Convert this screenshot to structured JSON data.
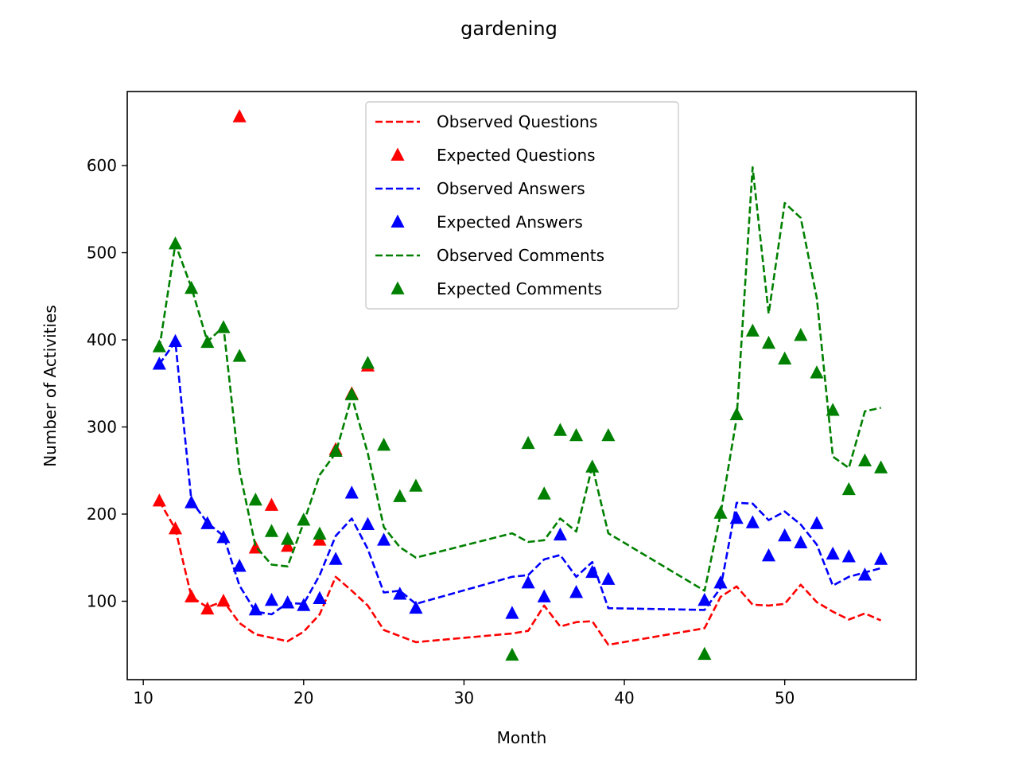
{
  "chart_data": {
    "type": "line",
    "title": "gardening",
    "xlabel": "Month",
    "ylabel": "Number of Activities",
    "xlim": [
      9,
      58.2
    ],
    "ylim": [
      10,
      685
    ],
    "xticks": [
      10,
      20,
      30,
      40,
      50
    ],
    "yticks": [
      100,
      200,
      300,
      400,
      500,
      600
    ],
    "grid": false,
    "legend_position": "top-center",
    "series": [
      {
        "name": "Observed Questions",
        "style": "dashed-line",
        "color": "#ff0000",
        "points": [
          [
            11,
            215
          ],
          [
            12,
            183
          ],
          [
            13,
            105
          ],
          [
            14,
            93
          ],
          [
            15,
            100
          ],
          [
            16,
            75
          ],
          [
            17,
            62
          ],
          [
            18,
            58
          ],
          [
            19,
            54
          ],
          [
            20,
            65
          ],
          [
            21,
            85
          ],
          [
            22,
            128
          ],
          [
            23,
            112
          ],
          [
            24,
            95
          ],
          [
            25,
            67
          ],
          [
            26,
            60
          ],
          [
            27,
            53
          ],
          [
            33,
            63
          ],
          [
            34,
            66
          ],
          [
            35,
            95
          ],
          [
            36,
            71
          ],
          [
            37,
            76
          ],
          [
            38,
            77
          ],
          [
            39,
            50
          ],
          [
            45,
            69
          ],
          [
            46,
            105
          ],
          [
            47,
            117
          ],
          [
            48,
            96
          ],
          [
            49,
            95
          ],
          [
            50,
            97
          ],
          [
            51,
            119
          ],
          [
            52,
            99
          ],
          [
            53,
            88
          ],
          [
            54,
            79
          ],
          [
            55,
            86
          ],
          [
            56,
            78
          ]
        ]
      },
      {
        "name": "Expected Questions",
        "style": "triangle-marker",
        "color": "#ff0000",
        "points": [
          [
            11,
            215
          ],
          [
            12,
            183
          ],
          [
            13,
            105
          ],
          [
            14,
            91
          ],
          [
            15,
            100
          ],
          [
            16,
            656
          ],
          [
            17,
            161
          ],
          [
            18,
            210
          ],
          [
            19,
            163
          ],
          [
            21,
            170
          ],
          [
            22,
            274
          ],
          [
            23,
            338
          ],
          [
            24,
            370
          ]
        ]
      },
      {
        "name": "Observed Answers",
        "style": "dashed-line",
        "color": "#0000ff",
        "points": [
          [
            11,
            372
          ],
          [
            12,
            398
          ],
          [
            13,
            215
          ],
          [
            14,
            190
          ],
          [
            15,
            175
          ],
          [
            16,
            118
          ],
          [
            17,
            88
          ],
          [
            18,
            85
          ],
          [
            19,
            98
          ],
          [
            20,
            97
          ],
          [
            21,
            130
          ],
          [
            22,
            175
          ],
          [
            23,
            195
          ],
          [
            24,
            160
          ],
          [
            25,
            110
          ],
          [
            26,
            112
          ],
          [
            27,
            97
          ],
          [
            33,
            128
          ],
          [
            34,
            130
          ],
          [
            35,
            148
          ],
          [
            36,
            153
          ],
          [
            37,
            128
          ],
          [
            38,
            145
          ],
          [
            39,
            92
          ],
          [
            45,
            90
          ],
          [
            46,
            115
          ],
          [
            47,
            213
          ],
          [
            48,
            212
          ],
          [
            49,
            193
          ],
          [
            50,
            203
          ],
          [
            51,
            188
          ],
          [
            52,
            165
          ],
          [
            53,
            118
          ],
          [
            54,
            128
          ],
          [
            55,
            133
          ],
          [
            56,
            138
          ]
        ]
      },
      {
        "name": "Expected Answers",
        "style": "triangle-marker",
        "color": "#0000ff",
        "points": [
          [
            11,
            372
          ],
          [
            12,
            398
          ],
          [
            13,
            213
          ],
          [
            14,
            189
          ],
          [
            15,
            173
          ],
          [
            16,
            140
          ],
          [
            17,
            90
          ],
          [
            18,
            101
          ],
          [
            19,
            98
          ],
          [
            20,
            95
          ],
          [
            21,
            103
          ],
          [
            22,
            148
          ],
          [
            23,
            224
          ],
          [
            24,
            188
          ],
          [
            25,
            170
          ],
          [
            26,
            108
          ],
          [
            27,
            92
          ],
          [
            33,
            86
          ],
          [
            34,
            121
          ],
          [
            35,
            105
          ],
          [
            36,
            176
          ],
          [
            37,
            110
          ],
          [
            38,
            133
          ],
          [
            39,
            125
          ],
          [
            45,
            101
          ],
          [
            46,
            121
          ],
          [
            47,
            195
          ],
          [
            48,
            190
          ],
          [
            49,
            152
          ],
          [
            50,
            175
          ],
          [
            51,
            167
          ],
          [
            52,
            189
          ],
          [
            53,
            154
          ],
          [
            54,
            151
          ],
          [
            55,
            130
          ],
          [
            56,
            148
          ]
        ]
      },
      {
        "name": "Observed Comments",
        "style": "dashed-line",
        "color": "#008000",
        "points": [
          [
            11,
            390
          ],
          [
            12,
            510
          ],
          [
            13,
            460
          ],
          [
            14,
            398
          ],
          [
            15,
            415
          ],
          [
            16,
            250
          ],
          [
            17,
            163
          ],
          [
            18,
            142
          ],
          [
            19,
            140
          ],
          [
            20,
            190
          ],
          [
            21,
            245
          ],
          [
            22,
            270
          ],
          [
            23,
            335
          ],
          [
            24,
            270
          ],
          [
            25,
            185
          ],
          [
            26,
            162
          ],
          [
            27,
            150
          ],
          [
            33,
            178
          ],
          [
            34,
            168
          ],
          [
            35,
            170
          ],
          [
            36,
            195
          ],
          [
            37,
            180
          ],
          [
            38,
            255
          ],
          [
            39,
            178
          ],
          [
            45,
            112
          ],
          [
            46,
            200
          ],
          [
            47,
            310
          ],
          [
            48,
            598
          ],
          [
            49,
            430
          ],
          [
            50,
            557
          ],
          [
            51,
            540
          ],
          [
            52,
            448
          ],
          [
            53,
            266
          ],
          [
            54,
            253
          ],
          [
            55,
            318
          ],
          [
            56,
            322
          ]
        ]
      },
      {
        "name": "Expected Comments",
        "style": "triangle-marker",
        "color": "#008000",
        "points": [
          [
            11,
            392
          ],
          [
            12,
            510
          ],
          [
            13,
            459
          ],
          [
            14,
            397
          ],
          [
            15,
            414
          ],
          [
            16,
            381
          ],
          [
            17,
            216
          ],
          [
            18,
            180
          ],
          [
            19,
            171
          ],
          [
            20,
            193
          ],
          [
            21,
            177
          ],
          [
            22,
            272
          ],
          [
            23,
            337
          ],
          [
            24,
            373
          ],
          [
            25,
            279
          ],
          [
            26,
            220
          ],
          [
            27,
            232
          ],
          [
            33,
            38
          ],
          [
            34,
            281
          ],
          [
            35,
            223
          ],
          [
            36,
            296
          ],
          [
            37,
            290
          ],
          [
            38,
            254
          ],
          [
            39,
            290
          ],
          [
            45,
            39
          ],
          [
            46,
            201
          ],
          [
            47,
            314
          ],
          [
            48,
            410
          ],
          [
            49,
            396
          ],
          [
            50,
            378
          ],
          [
            51,
            405
          ],
          [
            52,
            362
          ],
          [
            53,
            319
          ],
          [
            54,
            228
          ],
          [
            55,
            261
          ],
          [
            56,
            253
          ]
        ]
      }
    ]
  }
}
